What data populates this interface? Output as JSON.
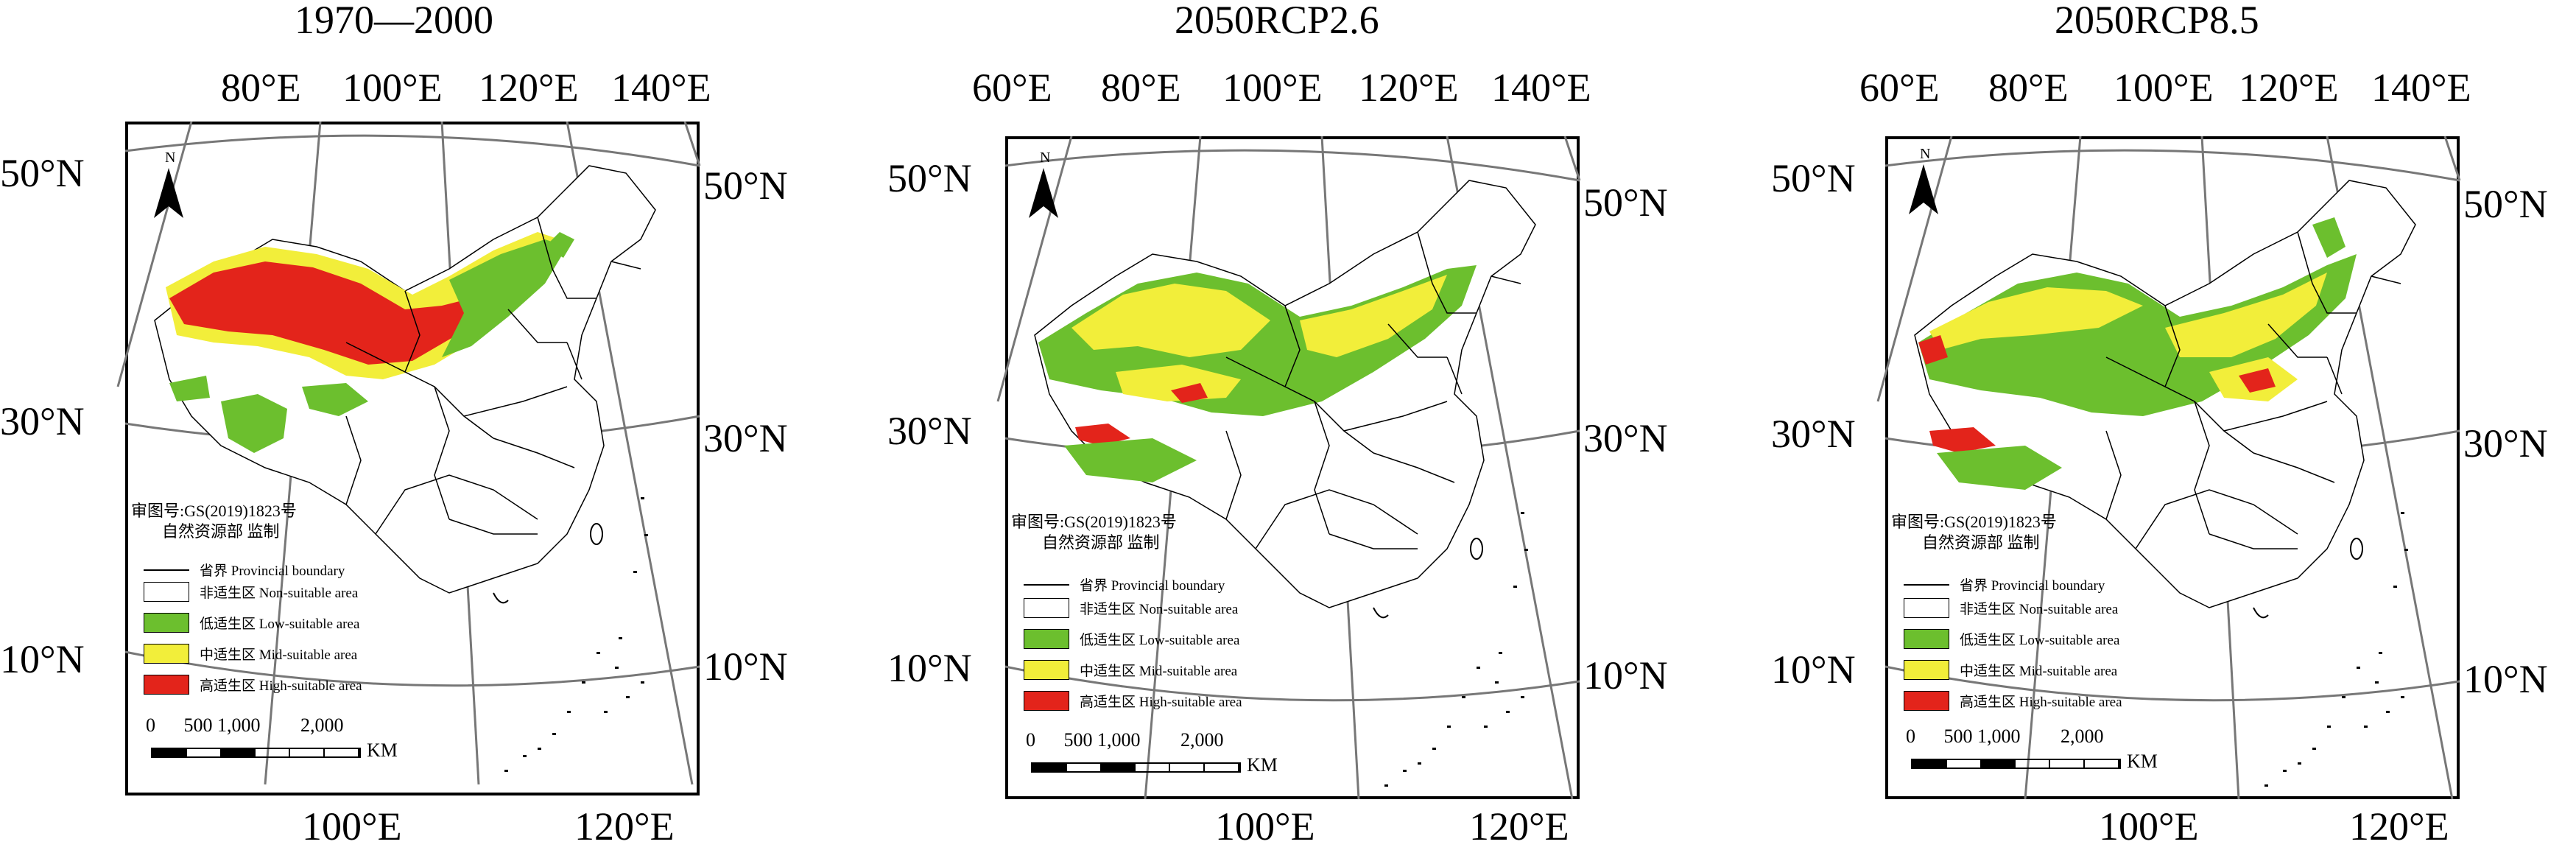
{
  "panels": [
    {
      "title": "1970—2000",
      "top_lon_labels": [
        "80°E",
        "100°E",
        "120°E",
        "140°E"
      ],
      "bottom_lon_labels": [
        "100°E",
        "120°E"
      ],
      "left_lat_labels": [
        "50°N",
        "30°N",
        "10°N"
      ],
      "right_lat_labels": [
        "50°N",
        "30°N",
        "10°N"
      ]
    },
    {
      "title": "2050RCP2.6",
      "top_lon_labels": [
        "60°E",
        "80°E",
        "100°E",
        "120°E",
        "140°E"
      ],
      "bottom_lon_labels": [
        "100°E",
        "120°E"
      ],
      "left_lat_labels": [
        "50°N",
        "30°N",
        "10°N"
      ],
      "right_lat_labels": [
        "50°N",
        "30°N",
        "10°N"
      ]
    },
    {
      "title": "2050RCP8.5",
      "top_lon_labels": [
        "60°E",
        "80°E",
        "100°E",
        "120°E",
        "140°E"
      ],
      "bottom_lon_labels": [
        "100°E",
        "120°E"
      ],
      "left_lat_labels": [
        "50°N",
        "30°N",
        "10°N"
      ],
      "right_lat_labels": [
        "50°N",
        "30°N",
        "10°N"
      ]
    }
  ],
  "north_arrow_label": "N",
  "approval_line1": "审图号:GS(2019)1823号",
  "approval_line2": "自然资源部 监制",
  "legend": [
    {
      "key": "boundary",
      "label": "省界 Provincial boundary",
      "type": "line"
    },
    {
      "key": "non",
      "label": "非适生区 Non-suitable area",
      "color": "#ffffff"
    },
    {
      "key": "low",
      "label": "低适生区 Low-suitable area",
      "color": "#6cbf2e"
    },
    {
      "key": "mid",
      "label": "中适生区 Mid-suitable area",
      "color": "#f2ee3a"
    },
    {
      "key": "high",
      "label": "高适生区 High-suitable area",
      "color": "#e3241b"
    }
  ],
  "scale": {
    "labels": [
      "0",
      "500",
      "1,000",
      "2,000"
    ],
    "unit": "KM"
  },
  "colors": {
    "low": "#6cbf2e",
    "mid": "#f2ee3a",
    "high": "#e3241b",
    "grid": "#777777"
  }
}
